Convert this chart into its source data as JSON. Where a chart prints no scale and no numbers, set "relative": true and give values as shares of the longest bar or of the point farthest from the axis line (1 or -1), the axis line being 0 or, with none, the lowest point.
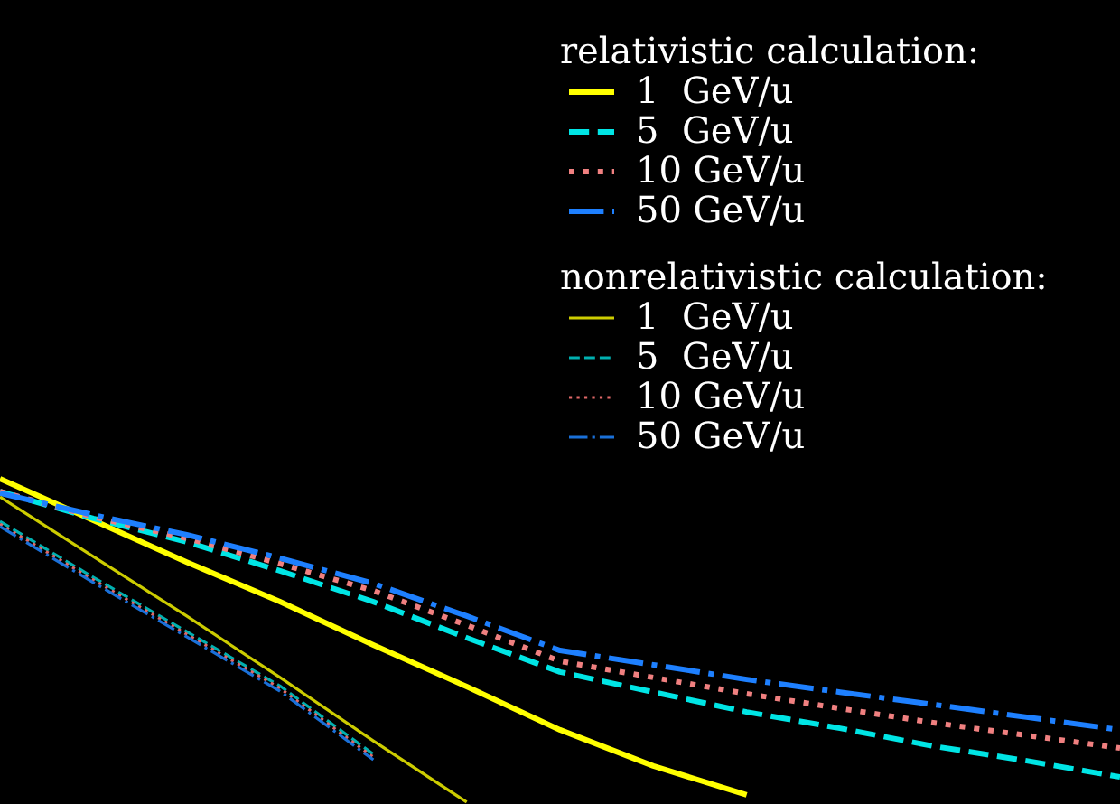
{
  "chart_data": {
    "type": "line",
    "relative": true,
    "legend": "top right",
    "legend_title": "relativistic calculation:",
    "annotations": [
      "nonrelativistic calculation:"
    ],
    "categories": [
      null,
      null,
      null,
      null,
      null,
      null,
      null,
      null,
      null,
      null,
      null,
      null,
      null
    ],
    "series": [
      {
        "name": "1  GeV/u",
        "color": "#ffff00",
        "line_style": "solid",
        "values": [
          1.0,
          0.872,
          0.744,
          0.622,
          0.489,
          0.361,
          0.228,
          0.117,
          0.028,
          null,
          null,
          null,
          null
        ]
      },
      {
        "name": "5  GeV/u",
        "color": "#00e5e5",
        "line_style": "dashed",
        "values": [
          0.961,
          0.878,
          0.806,
          0.717,
          0.622,
          0.511,
          0.406,
          0.344,
          0.283,
          0.233,
          0.178,
          0.133,
          0.083
        ]
      },
      {
        "name": "10 GeV/u",
        "color": "#f08080",
        "line_style": "dotted",
        "values": [
          0.961,
          0.883,
          0.817,
          0.739,
          0.656,
          0.55,
          0.439,
          0.389,
          0.339,
          0.294,
          0.25,
          0.211,
          0.172
        ]
      },
      {
        "name": "50 GeV/u",
        "color": "#1e80ff",
        "line_style": "dashdot",
        "values": [
          0.956,
          0.889,
          0.828,
          0.756,
          0.678,
          0.578,
          0.472,
          0.428,
          0.383,
          0.344,
          0.306,
          0.267,
          0.228
        ]
      },
      {
        "name": "1  GeV/u",
        "color": "#cccc00",
        "line_style": "solid",
        "values": [
          0.944,
          0.761,
          0.578,
          0.389,
          0.194,
          0.006,
          null,
          null,
          null,
          null,
          null,
          null,
          null
        ]
      },
      {
        "name": "5  GeV/u",
        "color": "#00b0b0",
        "line_style": "dashed",
        "values": [
          0.869,
          0.697,
          0.53,
          0.363,
          0.153,
          null,
          null,
          null,
          null,
          null,
          null,
          null,
          null
        ]
      },
      {
        "name": "10 GeV/u",
        "color": "#e06868",
        "line_style": "dotted",
        "values": [
          0.861,
          0.689,
          0.522,
          0.356,
          0.144,
          null,
          null,
          null,
          null,
          null,
          null,
          null,
          null
        ]
      },
      {
        "name": "50 GeV/u",
        "color": "#1a70d8",
        "line_style": "dashdot",
        "values": [
          0.853,
          0.681,
          0.514,
          0.347,
          0.136,
          null,
          null,
          null,
          null,
          null,
          null,
          null,
          null
        ]
      }
    ]
  }
}
